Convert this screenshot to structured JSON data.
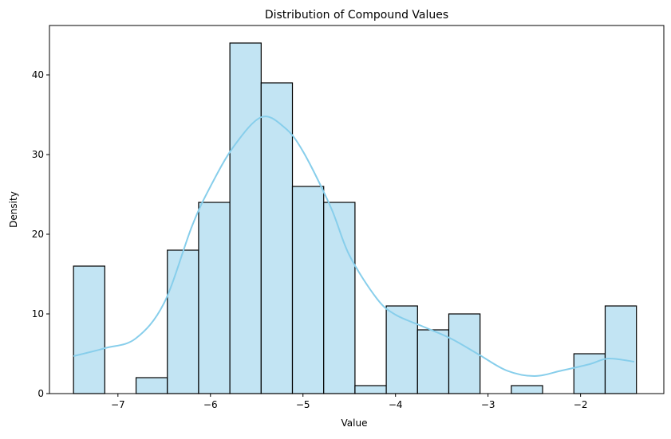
{
  "chart_data": {
    "type": "bar",
    "subtype": "histogram-with-kde",
    "title": "Distribution of Compound Values",
    "xlabel": "Value",
    "ylabel": "Density",
    "xlim": [
      -7.74,
      -1.1
    ],
    "ylim": [
      0,
      46.2
    ],
    "grid": false,
    "bin_start": -7.48,
    "bin_width": 0.338,
    "values": [
      16,
      0,
      2,
      18,
      24,
      44,
      39,
      26,
      24,
      1,
      11,
      8,
      10,
      0,
      1,
      0,
      5,
      11
    ],
    "xticks": [
      -7,
      -6,
      -5,
      -4,
      -3,
      -2
    ],
    "xtick_labels": [
      "−7",
      "−6",
      "−5",
      "−4",
      "−3",
      "−2"
    ],
    "yticks": [
      0,
      10,
      20,
      30,
      40
    ],
    "ytick_labels": [
      "0",
      "10",
      "20",
      "30",
      "40"
    ],
    "kde": {
      "x": [
        -7.48,
        -7.14,
        -6.81,
        -6.5,
        -6.2,
        -6.0,
        -5.75,
        -5.45,
        -5.2,
        -5.0,
        -4.7,
        -4.5,
        -4.2,
        -4.0,
        -3.7,
        -3.4,
        -3.1,
        -2.8,
        -2.5,
        -2.2,
        -1.9,
        -1.7,
        -1.42
      ],
      "y": [
        4.7,
        5.7,
        6.9,
        11.4,
        21,
        26,
        31,
        34.7,
        33.4,
        30.4,
        23.4,
        17.4,
        11.9,
        9.9,
        8.4,
        6.9,
        4.9,
        2.9,
        2.2,
        2.9,
        3.7,
        4.4,
        4.0
      ]
    },
    "colors": {
      "bar_fill": "#c2e4f3",
      "bar_edge": "#000000",
      "kde_line": "#87ceeb"
    }
  }
}
